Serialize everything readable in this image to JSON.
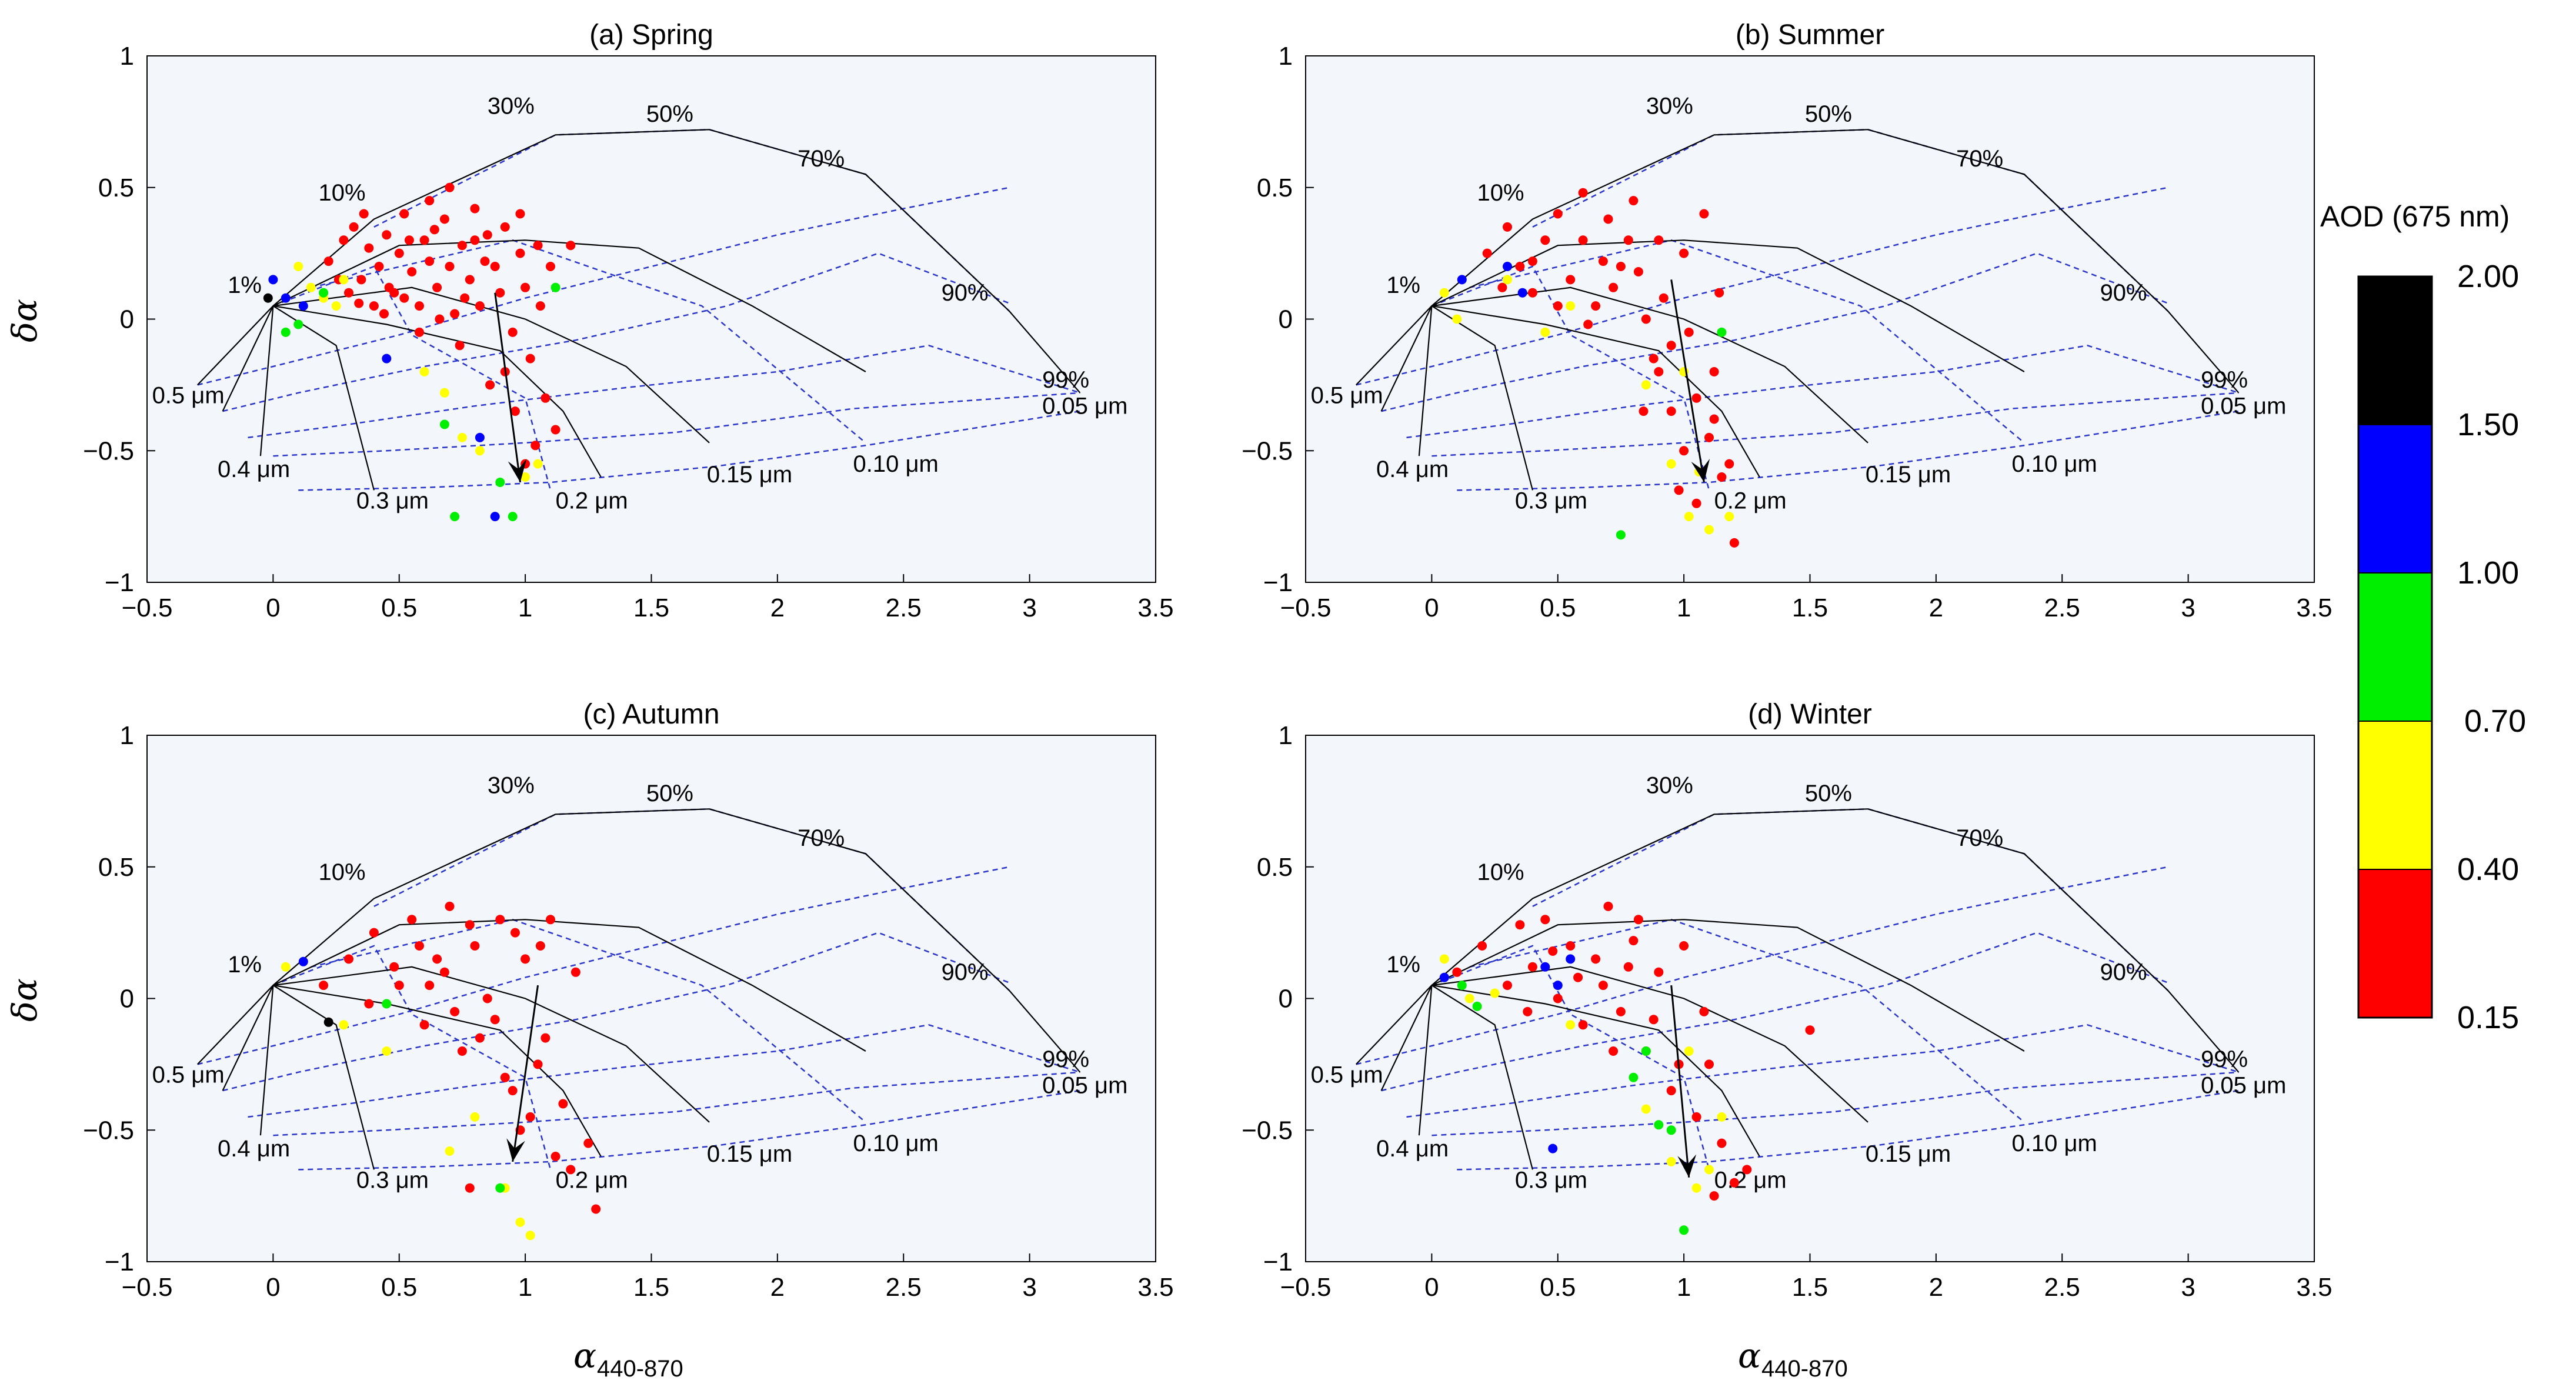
{
  "colors": {
    "plot_bg": "#f3f6fb",
    "solid_line": "#000000",
    "dashed_line": "#2a35c9",
    "red": "#ff0000",
    "yellow": "#ffff00",
    "green": "#00ee00",
    "blue": "#0000ff",
    "black": "#000000"
  },
  "axes": {
    "xlabel_main": "α",
    "xlabel_sub": "440-870",
    "ylabel": "δα",
    "xlim": [
      -0.5,
      3.5
    ],
    "ylim": [
      -1,
      1
    ],
    "xticks": [
      "−0.5",
      "0",
      "0.5",
      "1",
      "1.5",
      "2",
      "2.5",
      "3",
      "3.5"
    ],
    "yticks": [
      "1",
      "0.5",
      "0",
      "−0.5",
      "−1"
    ]
  },
  "colorbar": {
    "title": "AOD (675 nm)",
    "labels": [
      "2.00",
      "1.50",
      "1.00",
      "0.70",
      "0.40",
      "0.15"
    ],
    "colors": [
      "#000000",
      "#0000ff",
      "#00ee00",
      "#ffff00",
      "#ff0000"
    ]
  },
  "grid_annotations": {
    "fractions": [
      "1%",
      "10%",
      "30%",
      "50%",
      "70%",
      "90%",
      "99%"
    ],
    "radii": [
      "0.5 μm",
      "0.4 μm",
      "0.3 μm",
      "0.2 μm",
      "0.15 μm",
      "0.10 μm",
      "0.05 μm"
    ]
  },
  "chart_data": [
    {
      "type": "scatter",
      "title": "(a) Spring",
      "xlabel": "α 440-870",
      "ylabel": "δα",
      "xlim": [
        -0.5,
        3.5
      ],
      "ylim": [
        -1,
        1
      ],
      "arrow": [
        [
          0.88,
          0.1
        ],
        [
          0.98,
          -0.62
        ]
      ],
      "points": {
        "red": [
          [
            0.22,
            0.22
          ],
          [
            0.28,
            0.3
          ],
          [
            0.32,
            0.35
          ],
          [
            0.35,
            0.15
          ],
          [
            0.38,
            0.27
          ],
          [
            0.4,
            0.05
          ],
          [
            0.42,
            0.2
          ],
          [
            0.45,
            0.32
          ],
          [
            0.48,
            0.1
          ],
          [
            0.5,
            0.25
          ],
          [
            0.52,
            0.4
          ],
          [
            0.55,
            0.18
          ],
          [
            0.58,
            0.05
          ],
          [
            0.6,
            0.3
          ],
          [
            0.62,
            0.22
          ],
          [
            0.65,
            0.12
          ],
          [
            0.68,
            0.38
          ],
          [
            0.7,
            0.2
          ],
          [
            0.72,
            0.02
          ],
          [
            0.75,
            0.28
          ],
          [
            0.78,
            0.15
          ],
          [
            0.8,
            0.42
          ],
          [
            0.82,
            0.05
          ],
          [
            0.85,
            0.32
          ],
          [
            0.88,
            0.2
          ],
          [
            0.9,
            0.1
          ],
          [
            0.92,
            0.35
          ],
          [
            0.95,
            -0.05
          ],
          [
            0.98,
            0.25
          ],
          [
            1.0,
            0.12
          ],
          [
            1.02,
            -0.15
          ],
          [
            1.05,
            0.28
          ],
          [
            1.08,
            -0.3
          ],
          [
            1.1,
            0.2
          ],
          [
            1.12,
            -0.42
          ],
          [
            1.18,
            0.28
          ],
          [
            0.3,
            0.1
          ],
          [
            0.36,
            0.4
          ],
          [
            0.44,
            0.02
          ],
          [
            0.54,
            0.3
          ],
          [
            0.62,
            0.45
          ],
          [
            0.7,
            0.5
          ],
          [
            0.76,
            0.08
          ],
          [
            0.84,
            0.22
          ],
          [
            0.92,
            -0.2
          ],
          [
            0.96,
            -0.35
          ],
          [
            1.04,
            -0.48
          ],
          [
            0.58,
            -0.05
          ],
          [
            0.66,
            0.0
          ],
          [
            0.74,
            -0.1
          ],
          [
            0.86,
            -0.25
          ],
          [
            1.0,
            -0.55
          ],
          [
            0.26,
            0.15
          ],
          [
            0.46,
            0.12
          ],
          [
            0.64,
            0.34
          ],
          [
            0.8,
            0.3
          ],
          [
            0.98,
            0.4
          ],
          [
            1.06,
            0.05
          ],
          [
            0.34,
            0.06
          ],
          [
            0.52,
            0.08
          ]
        ],
        "yellow": [
          [
            0.1,
            0.2
          ],
          [
            0.15,
            0.12
          ],
          [
            0.2,
            0.08
          ],
          [
            0.25,
            0.05
          ],
          [
            0.28,
            0.15
          ],
          [
            0.6,
            -0.2
          ],
          [
            0.68,
            -0.28
          ],
          [
            0.75,
            -0.45
          ],
          [
            0.82,
            -0.5
          ],
          [
            1.0,
            -0.6
          ],
          [
            1.05,
            -0.55
          ]
        ],
        "green": [
          [
            0.05,
            -0.05
          ],
          [
            0.1,
            -0.02
          ],
          [
            0.2,
            0.1
          ],
          [
            0.68,
            -0.4
          ],
          [
            0.72,
            -0.75
          ],
          [
            0.9,
            -0.62
          ],
          [
            0.95,
            -0.75
          ],
          [
            1.12,
            0.12
          ]
        ],
        "blue": [
          [
            0.0,
            0.15
          ],
          [
            0.05,
            0.08
          ],
          [
            0.12,
            0.05
          ],
          [
            0.45,
            -0.15
          ],
          [
            0.82,
            -0.45
          ],
          [
            0.88,
            -0.75
          ]
        ],
        "black": [
          [
            -0.02,
            0.08
          ]
        ]
      }
    },
    {
      "type": "scatter",
      "title": "(b) Summer",
      "xlabel": "α 440-870",
      "ylabel": "δα",
      "xlim": [
        -0.5,
        3.5
      ],
      "ylim": [
        -1,
        1
      ],
      "arrow": [
        [
          0.95,
          0.15
        ],
        [
          1.08,
          -0.62
        ]
      ],
      "points": {
        "red": [
          [
            0.22,
            0.25
          ],
          [
            0.3,
            0.35
          ],
          [
            0.35,
            0.2
          ],
          [
            0.4,
            0.1
          ],
          [
            0.45,
            0.3
          ],
          [
            0.5,
            0.4
          ],
          [
            0.55,
            0.15
          ],
          [
            0.6,
            0.3
          ],
          [
            0.65,
            0.05
          ],
          [
            0.7,
            0.38
          ],
          [
            0.75,
            0.2
          ],
          [
            0.8,
            0.45
          ],
          [
            0.85,
            0.0
          ],
          [
            0.9,
            0.3
          ],
          [
            0.95,
            -0.1
          ],
          [
            1.0,
            0.25
          ],
          [
            1.05,
            -0.3
          ],
          [
            1.08,
            0.4
          ],
          [
            1.1,
            -0.45
          ],
          [
            1.15,
            -0.6
          ],
          [
            1.18,
            -0.55
          ],
          [
            0.9,
            -0.2
          ],
          [
            0.95,
            -0.35
          ],
          [
            1.0,
            -0.5
          ],
          [
            1.12,
            -0.2
          ],
          [
            1.2,
            -0.85
          ],
          [
            0.62,
            -0.02
          ],
          [
            0.72,
            0.12
          ],
          [
            0.82,
            0.18
          ],
          [
            0.92,
            0.08
          ],
          [
            0.98,
            -0.65
          ],
          [
            1.05,
            -0.7
          ],
          [
            1.12,
            -0.38
          ],
          [
            0.5,
            0.05
          ],
          [
            0.4,
            0.22
          ],
          [
            0.28,
            0.12
          ],
          [
            0.6,
            0.48
          ],
          [
            0.78,
            0.3
          ],
          [
            1.02,
            -0.05
          ],
          [
            0.88,
            -0.15
          ],
          [
            0.68,
            0.22
          ],
          [
            1.14,
            0.1
          ],
          [
            0.84,
            -0.35
          ]
        ],
        "yellow": [
          [
            0.05,
            0.1
          ],
          [
            0.1,
            0.0
          ],
          [
            0.3,
            0.15
          ],
          [
            0.45,
            -0.05
          ],
          [
            0.55,
            0.05
          ],
          [
            0.85,
            -0.25
          ],
          [
            0.95,
            -0.55
          ],
          [
            1.02,
            -0.75
          ],
          [
            1.1,
            -0.8
          ],
          [
            1.18,
            -0.75
          ],
          [
            1.0,
            -0.2
          ],
          [
            1.06,
            -0.58
          ]
        ],
        "green": [
          [
            0.75,
            -0.82
          ],
          [
            1.15,
            -0.05
          ]
        ],
        "blue": [
          [
            0.12,
            0.15
          ],
          [
            0.3,
            0.2
          ],
          [
            0.36,
            0.1
          ]
        ],
        "black": []
      }
    },
    {
      "type": "scatter",
      "title": "(c) Autumn",
      "xlabel": "α 440-870",
      "ylabel": "δα",
      "xlim": [
        -0.5,
        3.5
      ],
      "ylim": [
        -1,
        1
      ],
      "arrow": [
        [
          1.05,
          0.05
        ],
        [
          0.95,
          -0.62
        ]
      ],
      "points": {
        "red": [
          [
            0.2,
            0.05
          ],
          [
            0.3,
            0.15
          ],
          [
            0.4,
            0.25
          ],
          [
            0.5,
            0.05
          ],
          [
            0.55,
            0.3
          ],
          [
            0.6,
            -0.1
          ],
          [
            0.65,
            0.15
          ],
          [
            0.7,
            0.35
          ],
          [
            0.75,
            -0.2
          ],
          [
            0.8,
            0.2
          ],
          [
            0.85,
            0.0
          ],
          [
            0.9,
            0.3
          ],
          [
            0.95,
            -0.35
          ],
          [
            1.0,
            0.15
          ],
          [
            1.05,
            -0.25
          ],
          [
            1.1,
            0.3
          ],
          [
            1.15,
            -0.4
          ],
          [
            1.2,
            0.1
          ],
          [
            1.25,
            -0.55
          ],
          [
            1.28,
            -0.8
          ],
          [
            0.62,
            0.05
          ],
          [
            0.72,
            -0.05
          ],
          [
            0.82,
            -0.15
          ],
          [
            0.92,
            -0.3
          ],
          [
            1.02,
            -0.45
          ],
          [
            1.12,
            -0.6
          ],
          [
            0.68,
            0.1
          ],
          [
            0.78,
            0.28
          ],
          [
            0.88,
            -0.08
          ],
          [
            0.98,
            -0.5
          ],
          [
            1.08,
            -0.15
          ],
          [
            0.58,
            0.2
          ],
          [
            0.48,
            0.12
          ],
          [
            0.38,
            -0.02
          ],
          [
            0.78,
            -0.72
          ],
          [
            1.18,
            -0.65
          ],
          [
            0.96,
            0.25
          ],
          [
            1.06,
            0.2
          ]
        ],
        "yellow": [
          [
            0.05,
            0.12
          ],
          [
            0.28,
            -0.1
          ],
          [
            0.45,
            -0.2
          ],
          [
            0.7,
            -0.58
          ],
          [
            0.8,
            -0.45
          ],
          [
            0.92,
            -0.72
          ],
          [
            0.98,
            -0.85
          ],
          [
            1.02,
            -0.9
          ]
        ],
        "green": [
          [
            0.45,
            -0.02
          ],
          [
            0.9,
            -0.72
          ]
        ],
        "blue": [
          [
            0.12,
            0.14
          ]
        ],
        "black": [
          [
            0.22,
            -0.09
          ]
        ]
      }
    },
    {
      "type": "scatter",
      "title": "(d) Winter",
      "xlabel": "α 440-870",
      "ylabel": "δα",
      "xlim": [
        -0.5,
        3.5
      ],
      "ylim": [
        -1,
        1
      ],
      "arrow": [
        [
          0.95,
          0.05
        ],
        [
          1.02,
          -0.68
        ]
      ],
      "points": {
        "red": [
          [
            0.1,
            0.1
          ],
          [
            0.2,
            0.2
          ],
          [
            0.3,
            0.05
          ],
          [
            0.35,
            0.28
          ],
          [
            0.4,
            0.12
          ],
          [
            0.45,
            0.3
          ],
          [
            0.5,
            0.0
          ],
          [
            0.55,
            0.2
          ],
          [
            0.6,
            -0.1
          ],
          [
            0.65,
            0.15
          ],
          [
            0.7,
            0.35
          ],
          [
            0.75,
            -0.05
          ],
          [
            0.8,
            0.22
          ],
          [
            0.85,
            -0.2
          ],
          [
            0.9,
            0.1
          ],
          [
            0.95,
            -0.35
          ],
          [
            1.0,
            0.2
          ],
          [
            1.05,
            -0.45
          ],
          [
            1.1,
            -0.25
          ],
          [
            1.15,
            -0.55
          ],
          [
            1.2,
            -0.7
          ],
          [
            1.25,
            -0.65
          ],
          [
            1.5,
            -0.12
          ],
          [
            0.68,
            0.05
          ],
          [
            0.78,
            0.12
          ],
          [
            0.88,
            -0.08
          ],
          [
            0.98,
            -0.25
          ],
          [
            1.08,
            -0.05
          ],
          [
            0.58,
            0.08
          ],
          [
            0.48,
            0.18
          ],
          [
            0.38,
            -0.05
          ],
          [
            1.12,
            -0.75
          ],
          [
            0.72,
            -0.2
          ],
          [
            0.82,
            0.3
          ]
        ],
        "yellow": [
          [
            0.05,
            0.15
          ],
          [
            0.15,
            0.0
          ],
          [
            0.25,
            0.02
          ],
          [
            0.55,
            -0.1
          ],
          [
            0.85,
            -0.42
          ],
          [
            0.95,
            -0.62
          ],
          [
            1.05,
            -0.72
          ],
          [
            1.1,
            -0.65
          ],
          [
            1.15,
            -0.45
          ],
          [
            1.02,
            -0.2
          ]
        ],
        "green": [
          [
            0.12,
            0.05
          ],
          [
            0.18,
            -0.03
          ],
          [
            0.8,
            -0.3
          ],
          [
            0.85,
            -0.2
          ],
          [
            0.9,
            -0.48
          ],
          [
            1.0,
            -0.88
          ],
          [
            0.95,
            -0.5
          ]
        ],
        "blue": [
          [
            0.05,
            0.08
          ],
          [
            0.45,
            0.12
          ],
          [
            0.5,
            0.05
          ],
          [
            0.55,
            0.15
          ],
          [
            0.48,
            -0.57
          ]
        ],
        "black": []
      }
    }
  ]
}
